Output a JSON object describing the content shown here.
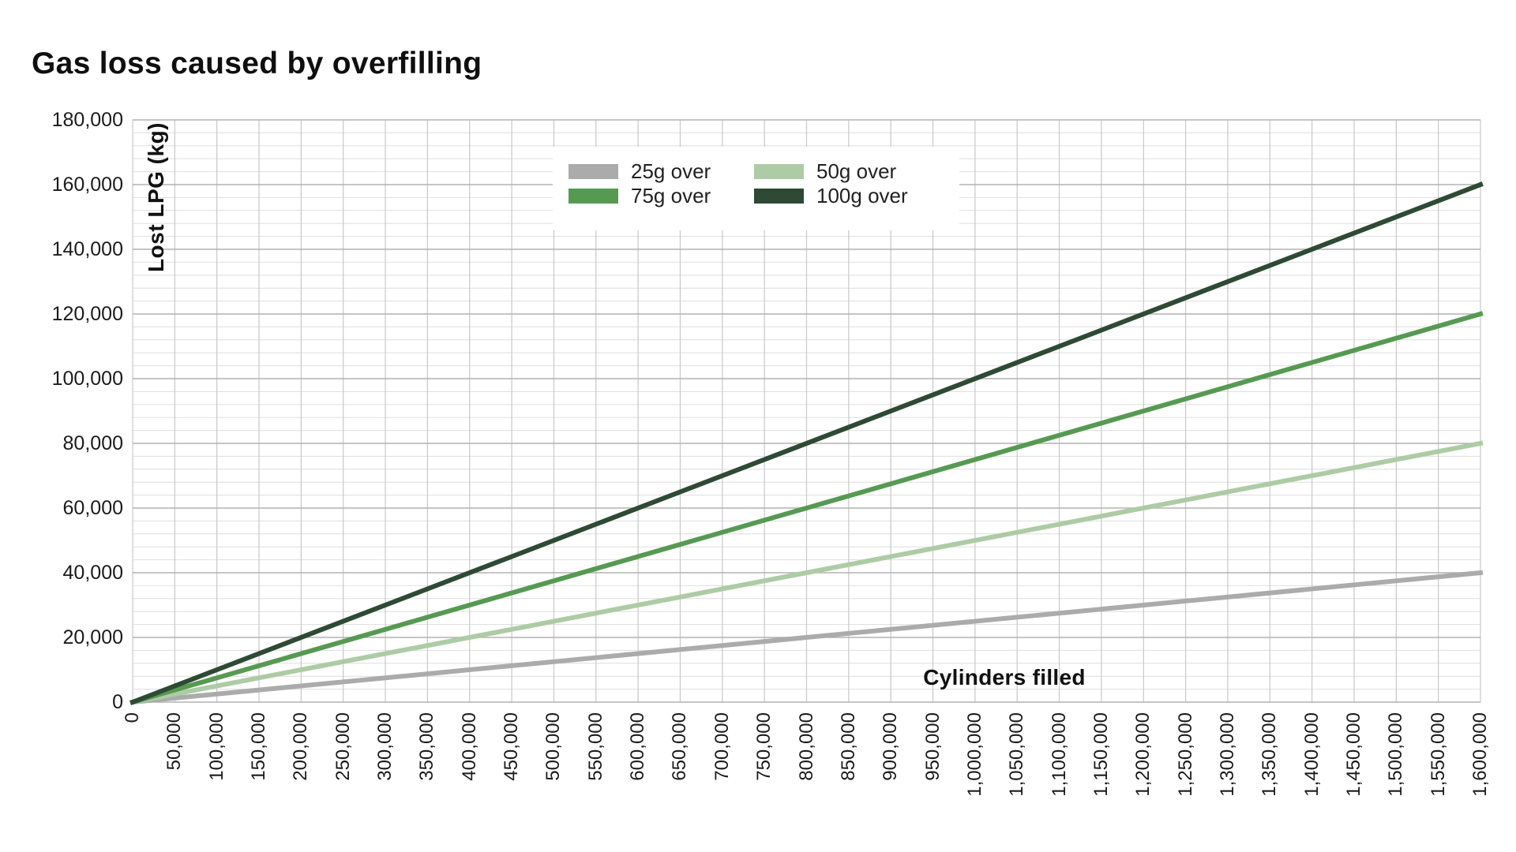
{
  "chart_data": {
    "type": "line",
    "title": "Gas loss caused by overfilling",
    "xlabel": "Cylinders filled",
    "ylabel": "Lost LPG (kg)",
    "xlim": [
      0,
      1600000
    ],
    "ylim": [
      0,
      180000
    ],
    "grid": true,
    "legend_position": "top-center-inside",
    "tick_format": "thousands-comma",
    "y_minor_step": 4000,
    "x_ticks": [
      0,
      50000,
      100000,
      150000,
      200000,
      250000,
      300000,
      350000,
      400000,
      450000,
      500000,
      550000,
      600000,
      650000,
      700000,
      750000,
      800000,
      850000,
      900000,
      950000,
      1000000,
      1050000,
      1100000,
      1150000,
      1200000,
      1250000,
      1300000,
      1350000,
      1400000,
      1450000,
      1500000,
      1550000,
      1600000
    ],
    "y_ticks": [
      0,
      20000,
      40000,
      60000,
      80000,
      100000,
      120000,
      140000,
      160000,
      180000
    ],
    "series": [
      {
        "name": "25g over",
        "color": "#ababab",
        "points": [
          [
            0,
            0
          ],
          [
            1600000,
            40000
          ]
        ]
      },
      {
        "name": "50g over",
        "color": "#adcba4",
        "points": [
          [
            0,
            0
          ],
          [
            1600000,
            80000
          ]
        ]
      },
      {
        "name": "75g over",
        "color": "#569a52",
        "points": [
          [
            0,
            0
          ],
          [
            1600000,
            120000
          ]
        ]
      },
      {
        "name": "100g over",
        "color": "#2e4a34",
        "points": [
          [
            0,
            0
          ],
          [
            1600000,
            160000
          ]
        ]
      }
    ],
    "grid_colors": {
      "minor_h": "#dedede",
      "major_h": "#b2b2b2",
      "vertical": "#c8c8c8"
    }
  }
}
